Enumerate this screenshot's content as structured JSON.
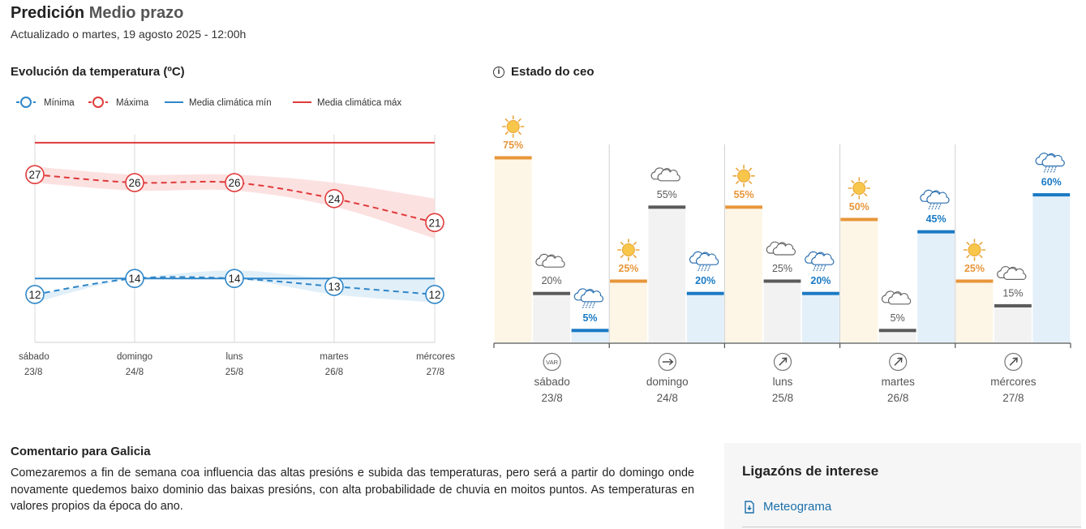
{
  "header": {
    "title": "Predición",
    "subtitle": "Medio prazo",
    "updated": "Actualizado o martes, 19 agosto 2025 - 12:00h"
  },
  "temperature": {
    "title": "Evolución da temperatura (ºC)",
    "legend": {
      "min": "Mínima",
      "max": "Máxima",
      "clim_min": "Media climática mín",
      "clim_max": "Media climática máx"
    },
    "colors": {
      "min": "#2f86c8",
      "max": "#e03a3a",
      "band_min": "#dcecf8",
      "band_max": "#fbdcdc"
    }
  },
  "chart_data": {
    "type": "line",
    "categories": [
      "sábado",
      "domingo",
      "luns",
      "martes",
      "mércores"
    ],
    "dates": [
      "23/8",
      "24/8",
      "25/8",
      "26/8",
      "27/8"
    ],
    "series": [
      {
        "name": "Máxima",
        "values": [
          27,
          26,
          26,
          24,
          21
        ]
      },
      {
        "name": "Mínima",
        "values": [
          12,
          14,
          14,
          13,
          12
        ]
      },
      {
        "name": "Media climática máx",
        "values": [
          31,
          31,
          31,
          31,
          31
        ]
      },
      {
        "name": "Media climática mín",
        "values": [
          14,
          14,
          14,
          14,
          14
        ]
      }
    ],
    "max_band": [
      [
        28,
        26
      ],
      [
        27,
        25
      ],
      [
        27,
        25
      ],
      [
        26,
        23
      ],
      [
        24,
        19
      ]
    ],
    "min_band": [
      [
        12,
        11
      ],
      [
        14,
        14
      ],
      [
        15,
        14
      ],
      [
        14,
        12
      ],
      [
        14,
        11
      ]
    ],
    "ylim": [
      6,
      32
    ]
  },
  "sky": {
    "title": "Estado do ceo",
    "days": [
      {
        "day": "sábado",
        "date": "23/8",
        "wind_icon": "variable-wind-icon",
        "wind_label": "VAR",
        "periods": [
          {
            "icon": "sun-icon",
            "kind": "sun",
            "prob": "75%",
            "value": 75
          },
          {
            "icon": "cloud-icon",
            "kind": "cloud",
            "prob": "20%",
            "value": 20
          },
          {
            "icon": "rain-cloud-icon",
            "kind": "rain",
            "prob": "5%",
            "value": 5
          }
        ]
      },
      {
        "day": "domingo",
        "date": "24/8",
        "wind_icon": "wind-arrow-icon",
        "wind_dir": 0,
        "periods": [
          {
            "icon": "sun-icon",
            "kind": "sun",
            "prob": "25%",
            "value": 25
          },
          {
            "icon": "cloud-icon",
            "kind": "cloud",
            "prob": "55%",
            "value": 55
          },
          {
            "icon": "rain-cloud-icon",
            "kind": "rain",
            "prob": "20%",
            "value": 20
          }
        ]
      },
      {
        "day": "luns",
        "date": "25/8",
        "wind_icon": "wind-arrow-icon",
        "wind_dir": -45,
        "periods": [
          {
            "icon": "sun-icon",
            "kind": "sun",
            "prob": "55%",
            "value": 55
          },
          {
            "icon": "cloud-icon",
            "kind": "cloud",
            "prob": "25%",
            "value": 25
          },
          {
            "icon": "rain-cloud-icon",
            "kind": "rain",
            "prob": "20%",
            "value": 20
          }
        ]
      },
      {
        "day": "martes",
        "date": "26/8",
        "wind_icon": "wind-arrow-icon",
        "wind_dir": -45,
        "periods": [
          {
            "icon": "sun-icon",
            "kind": "sun",
            "prob": "50%",
            "value": 50
          },
          {
            "icon": "cloud-icon",
            "kind": "cloud",
            "prob": "5%",
            "value": 5
          },
          {
            "icon": "rain-cloud-icon",
            "kind": "rain",
            "prob": "45%",
            "value": 45
          }
        ]
      },
      {
        "day": "mércores",
        "date": "27/8",
        "wind_icon": "wind-arrow-icon",
        "wind_dir": -45,
        "periods": [
          {
            "icon": "sun-icon",
            "kind": "sun",
            "prob": "25%",
            "value": 25
          },
          {
            "icon": "cloud-icon",
            "kind": "cloud",
            "prob": "15%",
            "value": 15
          },
          {
            "icon": "rain-cloud-icon",
            "kind": "rain",
            "prob": "60%",
            "value": 60
          }
        ]
      }
    ],
    "colors": {
      "sun": "#e8963a",
      "cloud": "#5a5a5a",
      "rain": "#1a7ac4",
      "sun_bg": "#fdf6e7",
      "cloud_bg": "#f2f2f2",
      "rain_bg": "#e3eff9"
    }
  },
  "comment": {
    "title": "Comentario para Galicia",
    "text": "Comezaremos a fin de semana coa influencia das altas presións e subida das temperaturas, pero será a partir do domingo onde novamente quedemos baixo dominio das baixas presións, con alta probabilidade de chuvia en moitos puntos. As temperaturas en valores propios da época do ano."
  },
  "links": {
    "title": "Ligazóns de interese",
    "items": [
      {
        "label": "Meteograma",
        "icon": "download-document-icon"
      }
    ]
  }
}
